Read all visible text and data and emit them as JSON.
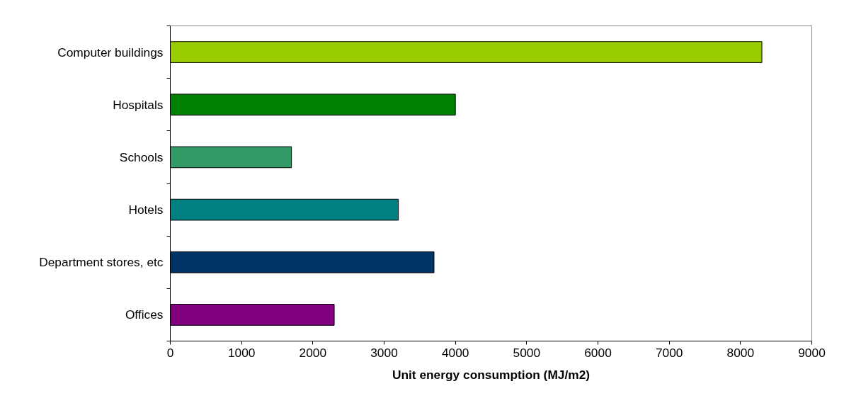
{
  "chart_data": {
    "type": "bar",
    "orientation": "horizontal",
    "xlabel": "Unit energy consumption (MJ/m2)",
    "categories": [
      "Computer buildings",
      "Hospitals",
      "Schools",
      "Hotels",
      "Department stores, etc",
      "Offices"
    ],
    "values": [
      8300,
      4000,
      1700,
      3200,
      3700,
      2300
    ],
    "colors": [
      "#99cc00",
      "#008000",
      "#339966",
      "#008080",
      "#003366",
      "#800080"
    ],
    "xlim": [
      0,
      9000
    ],
    "xticks": [
      0,
      1000,
      2000,
      3000,
      4000,
      5000,
      6000,
      7000,
      8000,
      9000
    ],
    "grid": false
  }
}
